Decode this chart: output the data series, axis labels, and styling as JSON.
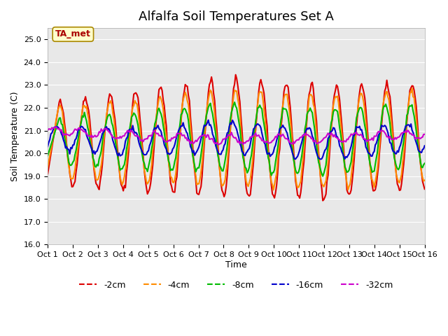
{
  "title": "Alfalfa Soil Temperatures Set A",
  "xlabel": "Time",
  "ylabel": "Soil Temperature (C)",
  "ylim": [
    16.0,
    25.5
  ],
  "yticks": [
    16.0,
    17.0,
    18.0,
    19.0,
    20.0,
    21.0,
    22.0,
    23.0,
    24.0,
    25.0
  ],
  "x_labels": [
    "Oct 1",
    "Oct 2",
    "Oct 3",
    "Oct 4",
    "Oct 5",
    "Oct 6",
    "Oct 7",
    "Oct 8",
    "Oct 9",
    "Oct 10",
    "Oct 11",
    "Oct 12",
    "Oct 13",
    "Oct 14",
    "Oct 15",
    "Oct 16"
  ],
  "series": {
    "-2cm": {
      "color": "#dd0000",
      "linewidth": 1.5
    },
    "-4cm": {
      "color": "#ff8c00",
      "linewidth": 1.5
    },
    "-8cm": {
      "color": "#00bb00",
      "linewidth": 1.5
    },
    "-16cm": {
      "color": "#0000cc",
      "linewidth": 1.5
    },
    "-32cm": {
      "color": "#cc00cc",
      "linewidth": 1.5
    }
  },
  "series_order": [
    "-2cm",
    "-4cm",
    "-8cm",
    "-16cm",
    "-32cm"
  ],
  "annotation": "TA_met",
  "annotation_color": "#aa0000",
  "annotation_bg": "#ffffcc",
  "background_color": "#e8e8e8",
  "figure_bg": "#ffffff",
  "n_days": 15,
  "points_per_day": 24
}
